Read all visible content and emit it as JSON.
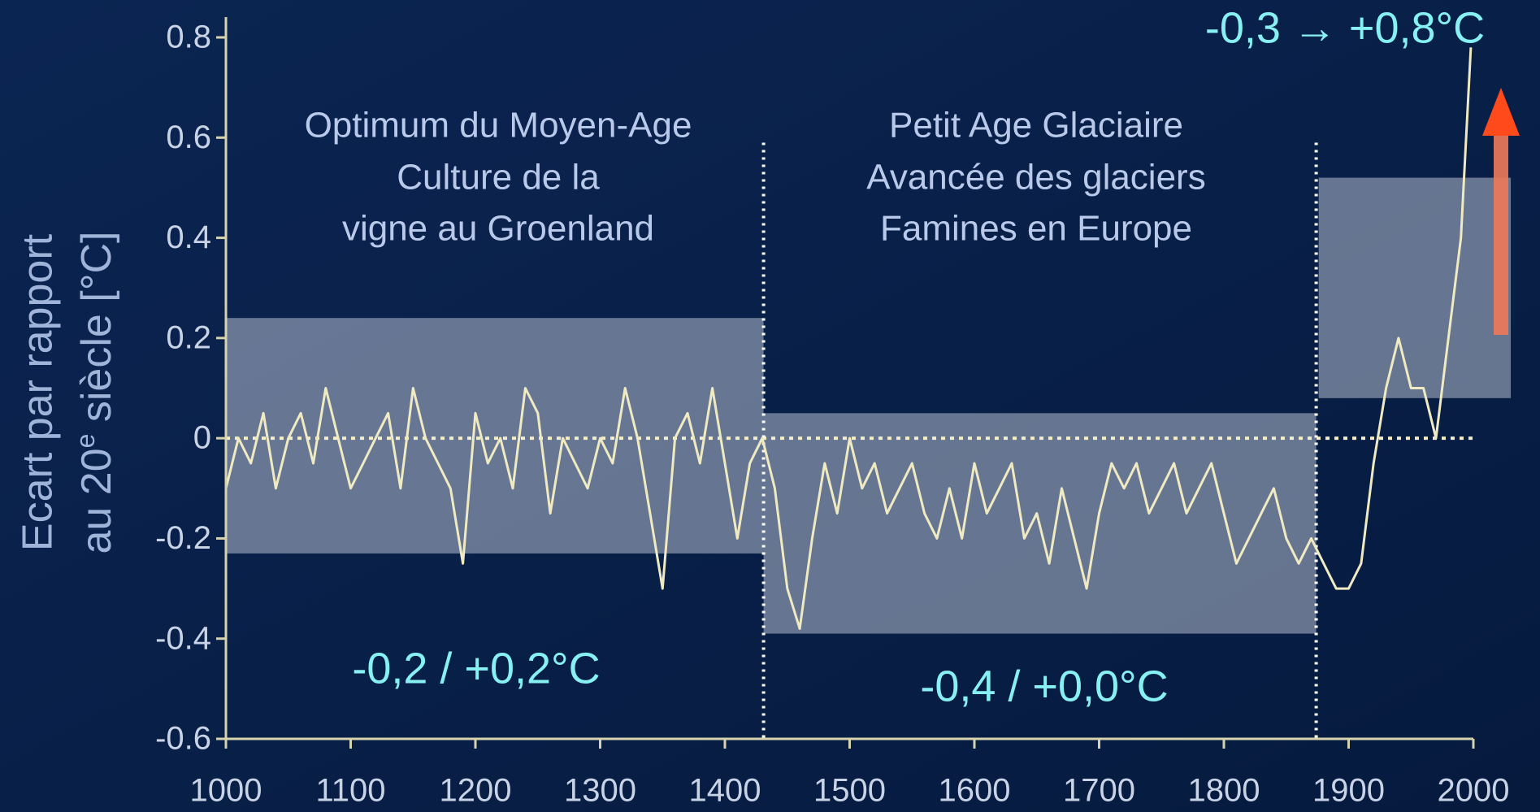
{
  "chart_data": {
    "type": "line",
    "y_label_line1": "Ecart par rapport",
    "y_label_line2_a": "au 20",
    "y_label_line2_sup": "e",
    "y_label_line2_b": " siècle [°C]",
    "annotations": [
      {
        "lines": [
          "Optimum du Moyen-Age",
          "Culture de la",
          "vigne au Groenland"
        ]
      },
      {
        "lines": [
          "Petit Age Glaciaire",
          "Avancée des glaciers",
          "Famines en Europe"
        ]
      }
    ],
    "range_labels": [
      "-0,2 / +0,2°C",
      "-0,4 / +0,0°C",
      "-0,3 → +0,8°C"
    ],
    "x": [
      1000,
      1010,
      1020,
      1030,
      1040,
      1050,
      1060,
      1070,
      1080,
      1090,
      1100,
      1110,
      1120,
      1130,
      1140,
      1150,
      1160,
      1170,
      1180,
      1190,
      1200,
      1210,
      1220,
      1230,
      1240,
      1250,
      1260,
      1270,
      1280,
      1290,
      1300,
      1310,
      1320,
      1330,
      1340,
      1350,
      1360,
      1370,
      1380,
      1390,
      1400,
      1410,
      1420,
      1430,
      1440,
      1450,
      1460,
      1470,
      1480,
      1490,
      1500,
      1510,
      1520,
      1530,
      1540,
      1550,
      1560,
      1570,
      1580,
      1590,
      1600,
      1610,
      1620,
      1630,
      1640,
      1650,
      1660,
      1670,
      1680,
      1690,
      1700,
      1710,
      1720,
      1730,
      1740,
      1750,
      1760,
      1770,
      1780,
      1790,
      1800,
      1810,
      1820,
      1830,
      1840,
      1850,
      1860,
      1870,
      1880,
      1890,
      1900,
      1910,
      1920,
      1930,
      1940,
      1950,
      1960,
      1970,
      1980,
      1990,
      1998
    ],
    "values": [
      -0.1,
      0.0,
      -0.05,
      0.05,
      -0.1,
      0.0,
      0.05,
      -0.05,
      0.1,
      0.0,
      -0.1,
      -0.05,
      0.0,
      0.05,
      -0.1,
      0.1,
      0.0,
      -0.05,
      -0.1,
      -0.25,
      0.05,
      -0.05,
      0.0,
      -0.1,
      0.1,
      0.05,
      -0.15,
      0.0,
      -0.05,
      -0.1,
      0.0,
      -0.05,
      0.1,
      0.0,
      -0.15,
      -0.3,
      0.0,
      0.05,
      -0.05,
      0.1,
      -0.05,
      -0.2,
      -0.05,
      0.0,
      -0.1,
      -0.3,
      -0.38,
      -0.2,
      -0.05,
      -0.15,
      0.0,
      -0.1,
      -0.05,
      -0.15,
      -0.1,
      -0.05,
      -0.15,
      -0.2,
      -0.1,
      -0.2,
      -0.05,
      -0.15,
      -0.1,
      -0.05,
      -0.2,
      -0.15,
      -0.25,
      -0.1,
      -0.2,
      -0.3,
      -0.15,
      -0.05,
      -0.1,
      -0.05,
      -0.15,
      -0.1,
      -0.05,
      -0.15,
      -0.1,
      -0.05,
      -0.15,
      -0.25,
      -0.2,
      -0.15,
      -0.1,
      -0.2,
      -0.25,
      -0.2,
      -0.25,
      -0.3,
      -0.3,
      -0.25,
      -0.05,
      0.1,
      0.2,
      0.1,
      0.1,
      0.0,
      0.2,
      0.4,
      0.78
    ],
    "color": "#efeac2",
    "bands": [
      {
        "x": [
          1000,
          1431
        ],
        "y": [
          -0.23,
          0.24
        ]
      },
      {
        "x": [
          1431,
          1874
        ],
        "y": [
          -0.39,
          0.05
        ]
      },
      {
        "x": [
          1876,
          2030
        ],
        "y": [
          0.08,
          0.52
        ]
      }
    ],
    "band_color": "#b4bdd0",
    "dividers": [
      1431,
      1874
    ],
    "reference_line": 0,
    "xlim": [
      1000,
      2000
    ],
    "ylim": [
      -0.6,
      0.8
    ],
    "xticks": [
      1000,
      1100,
      1200,
      1300,
      1400,
      1500,
      1600,
      1700,
      1800,
      1900,
      2000
    ],
    "yticks": [
      0.8,
      0.6,
      0.4,
      0.2,
      0,
      -0.2,
      -0.4,
      -0.6
    ]
  }
}
